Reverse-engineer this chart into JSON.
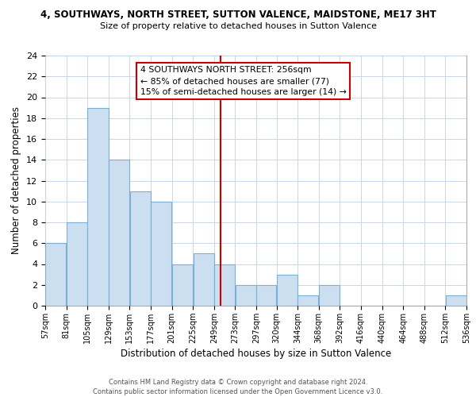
{
  "title1": "4, SOUTHWAYS, NORTH STREET, SUTTON VALENCE, MAIDSTONE, ME17 3HT",
  "title2": "Size of property relative to detached houses in Sutton Valence",
  "xlabel": "Distribution of detached houses by size in Sutton Valence",
  "ylabel": "Number of detached properties",
  "bar_edges": [
    57,
    81,
    105,
    129,
    153,
    177,
    201,
    225,
    249,
    273,
    297,
    320,
    344,
    368,
    392,
    416,
    440,
    464,
    488,
    512,
    536
  ],
  "bar_heights": [
    6,
    8,
    19,
    14,
    11,
    10,
    4,
    5,
    4,
    2,
    2,
    3,
    1,
    2,
    0,
    0,
    0,
    0,
    0,
    1
  ],
  "bar_color": "#ccdff0",
  "bar_edgecolor": "#7aafd4",
  "ref_line_x": 256,
  "ref_line_color": "#cc0000",
  "annotation_line1": "4 SOUTHWAYS NORTH STREET: 256sqm",
  "annotation_line2": "← 85% of detached houses are smaller (77)",
  "annotation_line3": "15% of semi-detached houses are larger (14) →",
  "ylim": [
    0,
    24
  ],
  "yticks": [
    0,
    2,
    4,
    6,
    8,
    10,
    12,
    14,
    16,
    18,
    20,
    22,
    24
  ],
  "tick_labels": [
    "57sqm",
    "81sqm",
    "105sqm",
    "129sqm",
    "153sqm",
    "177sqm",
    "201sqm",
    "225sqm",
    "249sqm",
    "273sqm",
    "297sqm",
    "320sqm",
    "344sqm",
    "368sqm",
    "392sqm",
    "416sqm",
    "440sqm",
    "464sqm",
    "488sqm",
    "512sqm",
    "536sqm"
  ],
  "footer_line1": "Contains HM Land Registry data © Crown copyright and database right 2024.",
  "footer_line2": "Contains public sector information licensed under the Open Government Licence v3.0.",
  "background_color": "#ffffff",
  "grid_color": "#c8d8e8"
}
